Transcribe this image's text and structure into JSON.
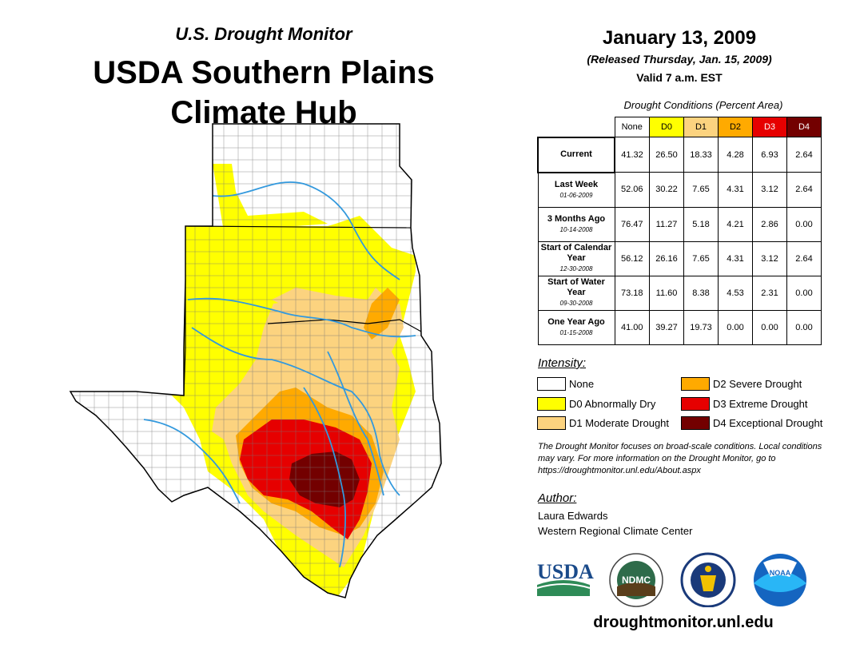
{
  "header": {
    "monitor_title": "U.S. Drought Monitor",
    "hub_title_line1": "USDA Southern Plains",
    "hub_title_line2": "Climate Hub"
  },
  "date": {
    "map_date": "January 13, 2009",
    "released": "(Released Thursday, Jan. 15, 2009)",
    "valid": "Valid 7 a.m. EST"
  },
  "conditions": {
    "title": "Drought Conditions (Percent Area)",
    "columns": [
      {
        "label": "None",
        "color": "#ffffff",
        "text_color": "#000000"
      },
      {
        "label": "D0",
        "color": "#ffff00",
        "text_color": "#000000"
      },
      {
        "label": "D1",
        "color": "#fcd37f",
        "text_color": "#000000"
      },
      {
        "label": "D2",
        "color": "#ffaa00",
        "text_color": "#000000"
      },
      {
        "label": "D3",
        "color": "#e60000",
        "text_color": "#ffffff"
      },
      {
        "label": "D4",
        "color": "#730000",
        "text_color": "#ffffff"
      }
    ],
    "rows": [
      {
        "label": "Current",
        "sublabel": "",
        "values": [
          "41.32",
          "26.50",
          "18.33",
          "4.28",
          "6.93",
          "2.64"
        ]
      },
      {
        "label": "Last Week",
        "sublabel": "01-06-2009",
        "values": [
          "52.06",
          "30.22",
          "7.65",
          "4.31",
          "3.12",
          "2.64"
        ]
      },
      {
        "label": "3 Months Ago",
        "sublabel": "10-14-2008",
        "values": [
          "76.47",
          "11.27",
          "5.18",
          "4.21",
          "2.86",
          "0.00"
        ]
      },
      {
        "label": "Start of Calendar Year",
        "sublabel": "12-30-2008",
        "values": [
          "56.12",
          "26.16",
          "7.65",
          "4.31",
          "3.12",
          "2.64"
        ]
      },
      {
        "label": "Start of Water Year",
        "sublabel": "09-30-2008",
        "values": [
          "73.18",
          "11.60",
          "8.38",
          "4.53",
          "2.31",
          "0.00"
        ]
      },
      {
        "label": "One Year Ago",
        "sublabel": "01-15-2008",
        "values": [
          "41.00",
          "39.27",
          "19.73",
          "0.00",
          "0.00",
          "0.00"
        ]
      }
    ]
  },
  "legend": {
    "heading": "Intensity:",
    "items": [
      {
        "label": "None",
        "color": "#ffffff"
      },
      {
        "label": "D0 Abnormally Dry",
        "color": "#ffff00"
      },
      {
        "label": "D1 Moderate Drought",
        "color": "#fcd37f"
      },
      {
        "label": "D2 Severe Drought",
        "color": "#ffaa00"
      },
      {
        "label": "D3 Extreme Drought",
        "color": "#e60000"
      },
      {
        "label": "D4 Exceptional Drought",
        "color": "#730000"
      }
    ]
  },
  "note": "The Drought Monitor focuses on broad-scale conditions. Local conditions may vary. For more information on the Drought Monitor, go to https://droughtmonitor.unl.edu/About.aspx",
  "author": {
    "heading": "Author:",
    "name": "Laura Edwards",
    "org": "Western Regional Climate Center"
  },
  "logos": {
    "usda": "USDA",
    "ndmc": "NDMC",
    "noaa": "NOAA"
  },
  "url": "droughtmonitor.unl.edu",
  "map": {
    "region": "Southern Plains: Kansas, Oklahoma, Texas",
    "river_color": "#3399dd"
  }
}
